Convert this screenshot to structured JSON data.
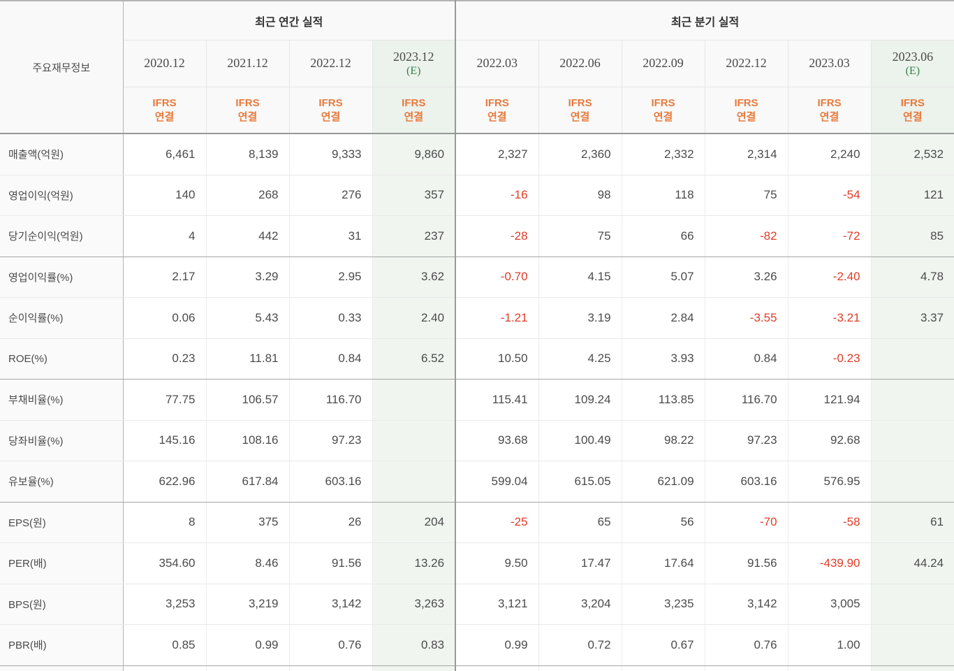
{
  "table": {
    "corner_label": "주요재무정보",
    "groups": [
      {
        "label": "최근 연간 실적",
        "columns": [
          {
            "period": "2020.12",
            "standard": "IFRS\n연결"
          },
          {
            "period": "2021.12",
            "standard": "IFRS\n연결"
          },
          {
            "period": "2022.12",
            "standard": "IFRS\n연결"
          },
          {
            "period": "2023.12",
            "estimate_mark": "(E)",
            "standard": "IFRS\n연결"
          }
        ]
      },
      {
        "label": "최근 분기 실적",
        "columns": [
          {
            "period": "2022.03",
            "standard": "IFRS\n연결"
          },
          {
            "period": "2022.06",
            "standard": "IFRS\n연결"
          },
          {
            "period": "2022.09",
            "standard": "IFRS\n연결"
          },
          {
            "period": "2022.12",
            "standard": "IFRS\n연결"
          },
          {
            "period": "2023.03",
            "standard": "IFRS\n연결"
          },
          {
            "period": "2023.06",
            "estimate_mark": "(E)",
            "standard": "IFRS\n연결"
          }
        ]
      }
    ],
    "rows": [
      {
        "label": "매출액(억원)",
        "values": [
          "6,461",
          "8,139",
          "9,333",
          "9,860",
          "2,327",
          "2,360",
          "2,332",
          "2,314",
          "2,240",
          "2,532"
        ],
        "group_end": false
      },
      {
        "label": "영업이익(억원)",
        "values": [
          "140",
          "268",
          "276",
          "357",
          "-16",
          "98",
          "118",
          "75",
          "-54",
          "121"
        ],
        "group_end": false
      },
      {
        "label": "당기순이익(억원)",
        "values": [
          "4",
          "442",
          "31",
          "237",
          "-28",
          "75",
          "66",
          "-82",
          "-72",
          "85"
        ],
        "group_end": true
      },
      {
        "label": "영업이익률(%)",
        "values": [
          "2.17",
          "3.29",
          "2.95",
          "3.62",
          "-0.70",
          "4.15",
          "5.07",
          "3.26",
          "-2.40",
          "4.78"
        ],
        "group_end": false
      },
      {
        "label": "순이익률(%)",
        "values": [
          "0.06",
          "5.43",
          "0.33",
          "2.40",
          "-1.21",
          "3.19",
          "2.84",
          "-3.55",
          "-3.21",
          "3.37"
        ],
        "group_end": false
      },
      {
        "label": "ROE(%)",
        "values": [
          "0.23",
          "11.81",
          "0.84",
          "6.52",
          "10.50",
          "4.25",
          "3.93",
          "0.84",
          "-0.23",
          ""
        ],
        "group_end": true
      },
      {
        "label": "부채비율(%)",
        "values": [
          "77.75",
          "106.57",
          "116.70",
          "",
          "115.41",
          "109.24",
          "113.85",
          "116.70",
          "121.94",
          ""
        ],
        "group_end": false
      },
      {
        "label": "당좌비율(%)",
        "values": [
          "145.16",
          "108.16",
          "97.23",
          "",
          "93.68",
          "100.49",
          "98.22",
          "97.23",
          "92.68",
          ""
        ],
        "group_end": false
      },
      {
        "label": "유보율(%)",
        "values": [
          "622.96",
          "617.84",
          "603.16",
          "",
          "599.04",
          "615.05",
          "621.09",
          "603.16",
          "576.95",
          ""
        ],
        "group_end": true
      },
      {
        "label": "EPS(원)",
        "values": [
          "8",
          "375",
          "26",
          "204",
          "-25",
          "65",
          "56",
          "-70",
          "-58",
          "61"
        ],
        "group_end": false
      },
      {
        "label": "PER(배)",
        "values": [
          "354.60",
          "8.46",
          "91.56",
          "13.26",
          "9.50",
          "17.47",
          "17.64",
          "91.56",
          "-439.90",
          "44.24"
        ],
        "group_end": false
      },
      {
        "label": "BPS(원)",
        "values": [
          "3,253",
          "3,219",
          "3,142",
          "3,263",
          "3,121",
          "3,204",
          "3,235",
          "3,142",
          "3,005",
          ""
        ],
        "group_end": false
      },
      {
        "label": "PBR(배)",
        "values": [
          "0.85",
          "0.99",
          "0.76",
          "0.83",
          "0.99",
          "0.72",
          "0.67",
          "0.76",
          "1.00",
          ""
        ],
        "group_end": true
      }
    ]
  },
  "colors": {
    "negative_value": "#e03c28",
    "ifrs_label": "#e87a3c",
    "estimate_mark": "#35824b",
    "estimate_column_bg": "#f0f5f0",
    "estimate_header_bg": "#ecf2ec"
  }
}
